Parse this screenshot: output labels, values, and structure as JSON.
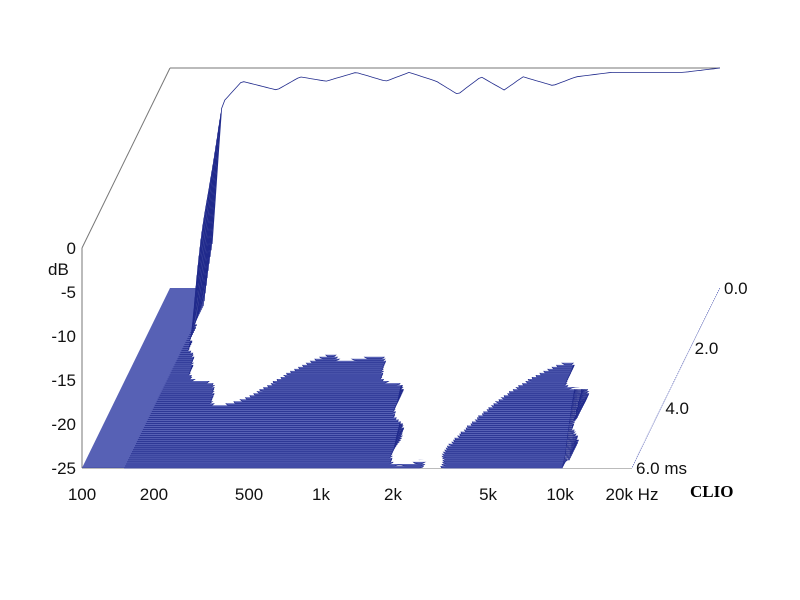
{
  "chart_data": {
    "type": "waterfall-3d",
    "brand": "CLIO",
    "colors": {
      "trace": "#202a8c",
      "fill": "#3a45a8",
      "axis": "#777777",
      "text": "#111111"
    },
    "y_axis": {
      "unit_label": "dB",
      "range": [
        -25,
        0
      ],
      "ticks": [
        {
          "value": 0,
          "label": "0"
        },
        {
          "value": -5,
          "label": "-5"
        },
        {
          "value": -10,
          "label": "-10"
        },
        {
          "value": -15,
          "label": "-15"
        },
        {
          "value": -20,
          "label": "-20"
        },
        {
          "value": -25,
          "label": "-25"
        }
      ]
    },
    "x_axis": {
      "scale": "log",
      "range": [
        100,
        20000
      ],
      "ticks": [
        {
          "value": 100,
          "label": "100"
        },
        {
          "value": 200,
          "label": "200"
        },
        {
          "value": 500,
          "label": "500"
        },
        {
          "value": 1000,
          "label": "1k"
        },
        {
          "value": 2000,
          "label": "2k"
        },
        {
          "value": 5000,
          "label": "5k"
        },
        {
          "value": 10000,
          "label": "10k"
        },
        {
          "value": 20000,
          "label": "20k Hz"
        }
      ]
    },
    "z_axis": {
      "range": [
        0,
        6
      ],
      "ticks": [
        {
          "value": 0,
          "label": "0.0"
        },
        {
          "value": 2,
          "label": "2.0"
        },
        {
          "value": 4,
          "label": "4.0"
        },
        {
          "value": 6,
          "label": "6.0 ms"
        }
      ]
    },
    "slice_count": 90,
    "response_t0": [
      {
        "f": 150,
        "db": -20
      },
      {
        "f": 165,
        "db": -4
      },
      {
        "f": 200,
        "db": -1.5
      },
      {
        "f": 280,
        "db": -2.5
      },
      {
        "f": 350,
        "db": -1
      },
      {
        "f": 450,
        "db": -1.5
      },
      {
        "f": 600,
        "db": -0.5
      },
      {
        "f": 800,
        "db": -1.5
      },
      {
        "f": 1000,
        "db": -0.5
      },
      {
        "f": 1300,
        "db": -1.5
      },
      {
        "f": 1600,
        "db": -3
      },
      {
        "f": 2000,
        "db": -1
      },
      {
        "f": 2500,
        "db": -2.5
      },
      {
        "f": 3000,
        "db": -1
      },
      {
        "f": 4000,
        "db": -2
      },
      {
        "f": 5000,
        "db": -1
      },
      {
        "f": 7000,
        "db": -0.5
      },
      {
        "f": 10000,
        "db": -0.5
      },
      {
        "f": 14000,
        "db": -0.5
      },
      {
        "f": 20000,
        "db": 0
      }
    ]
  }
}
